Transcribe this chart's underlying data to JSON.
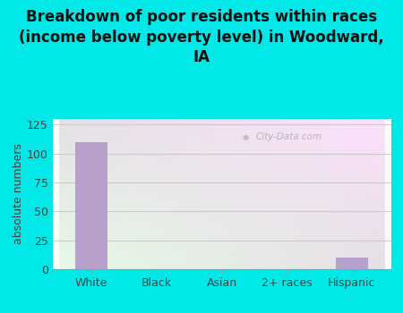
{
  "title": "Breakdown of poor residents within races\n(income below poverty level) in Woodward,\nIA",
  "categories": [
    "White",
    "Black",
    "Asian",
    "2+ races",
    "Hispanic"
  ],
  "values": [
    110,
    0,
    0,
    0,
    10
  ],
  "bar_color": "#b8a0cc",
  "ylabel": "absolute numbers",
  "ylim": [
    0,
    130
  ],
  "yticks": [
    0,
    25,
    50,
    75,
    100,
    125
  ],
  "bg_outer": "#00e8e8",
  "title_fontsize": 12,
  "label_fontsize": 9,
  "tick_fontsize": 9,
  "watermark": "City-Data.com",
  "plot_bg_topleft": "#e8f5e8",
  "plot_bg_topright": "#f8ffff",
  "plot_bg_bottomleft": "#d0ecd0",
  "plot_bg_bottomright": "#f0f8f8"
}
